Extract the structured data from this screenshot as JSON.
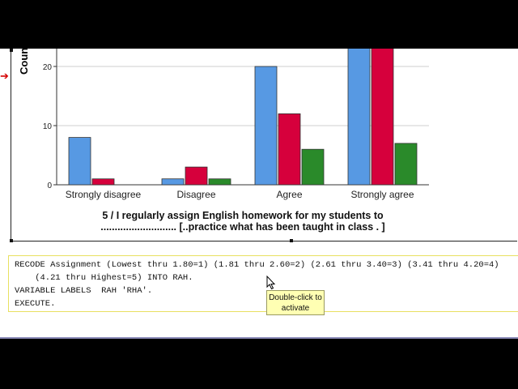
{
  "chart_data": {
    "type": "bar",
    "ylabel": "Count",
    "categories": [
      "Strongly disagree",
      "Disagree",
      "Agree",
      "Strongly agree"
    ],
    "series": [
      {
        "color": "#5799e3",
        "values": [
          8,
          1,
          20,
          25
        ]
      },
      {
        "color": "#d6003c",
        "values": [
          1,
          3,
          12,
          25
        ]
      },
      {
        "color": "#2a8a2a",
        "values": [
          0,
          1,
          6,
          7
        ]
      }
    ],
    "yticks": [
      0,
      10,
      20
    ],
    "ylim": [
      0,
      21
    ],
    "grid": true,
    "xtitle_line1": "5 / I regularly assign English homework for my students to",
    "xtitle_line2": "........................... [..practice what has been taught in class . ]"
  },
  "syntax": {
    "line1": "RECODE Assignment (Lowest thru 1.80=1) (1.81 thru 2.60=2) (2.61 thru 3.40=3) (3.41 thru 4.20=4)",
    "line2": "    (4.21 thru Highest=5) INTO RAH.",
    "line3": "VARIABLE LABELS  RAH 'RHA'.",
    "line4": "EXECUTE."
  },
  "tooltip": {
    "line1": "Double-click to",
    "line2": "activate"
  },
  "icons": {
    "selection_marker": "red-arrow-icon",
    "pointer": "mouse-pointer-icon"
  }
}
